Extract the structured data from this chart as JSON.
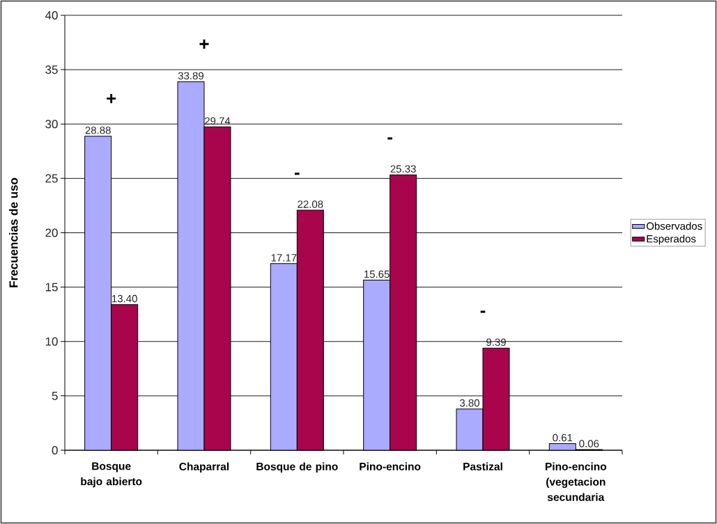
{
  "chart_data": {
    "type": "bar",
    "ylabel": "Frecuencias de uso",
    "categories": [
      "Bosque bajo abierto",
      "Chaparral",
      "Bosque de pino",
      "Pino-encino",
      "Pastizal",
      "Pino-encino (vegetacion secundaria"
    ],
    "series": [
      {
        "name": "Observados",
        "color": "#aaaaff",
        "values": [
          28.88,
          33.89,
          17.17,
          15.65,
          3.8,
          0.61
        ],
        "value_labels": [
          "28.88",
          "33.89",
          "17.17",
          "15.65",
          "3.80",
          "0.61"
        ]
      },
      {
        "name": "Esperados",
        "color": "#a8054d",
        "values": [
          13.4,
          29.74,
          22.08,
          25.33,
          9.39,
          0.06
        ],
        "value_labels": [
          "13.40",
          "29.74",
          "22.08",
          "25.33",
          "9.39",
          "0.06"
        ]
      }
    ],
    "ylim": [
      0,
      40
    ],
    "yticks": [
      0,
      5,
      10,
      15,
      20,
      25,
      30,
      35,
      40
    ],
    "grid": "y",
    "legend": "right",
    "annotations": [
      "+",
      "+",
      "-",
      "-",
      "-"
    ]
  }
}
